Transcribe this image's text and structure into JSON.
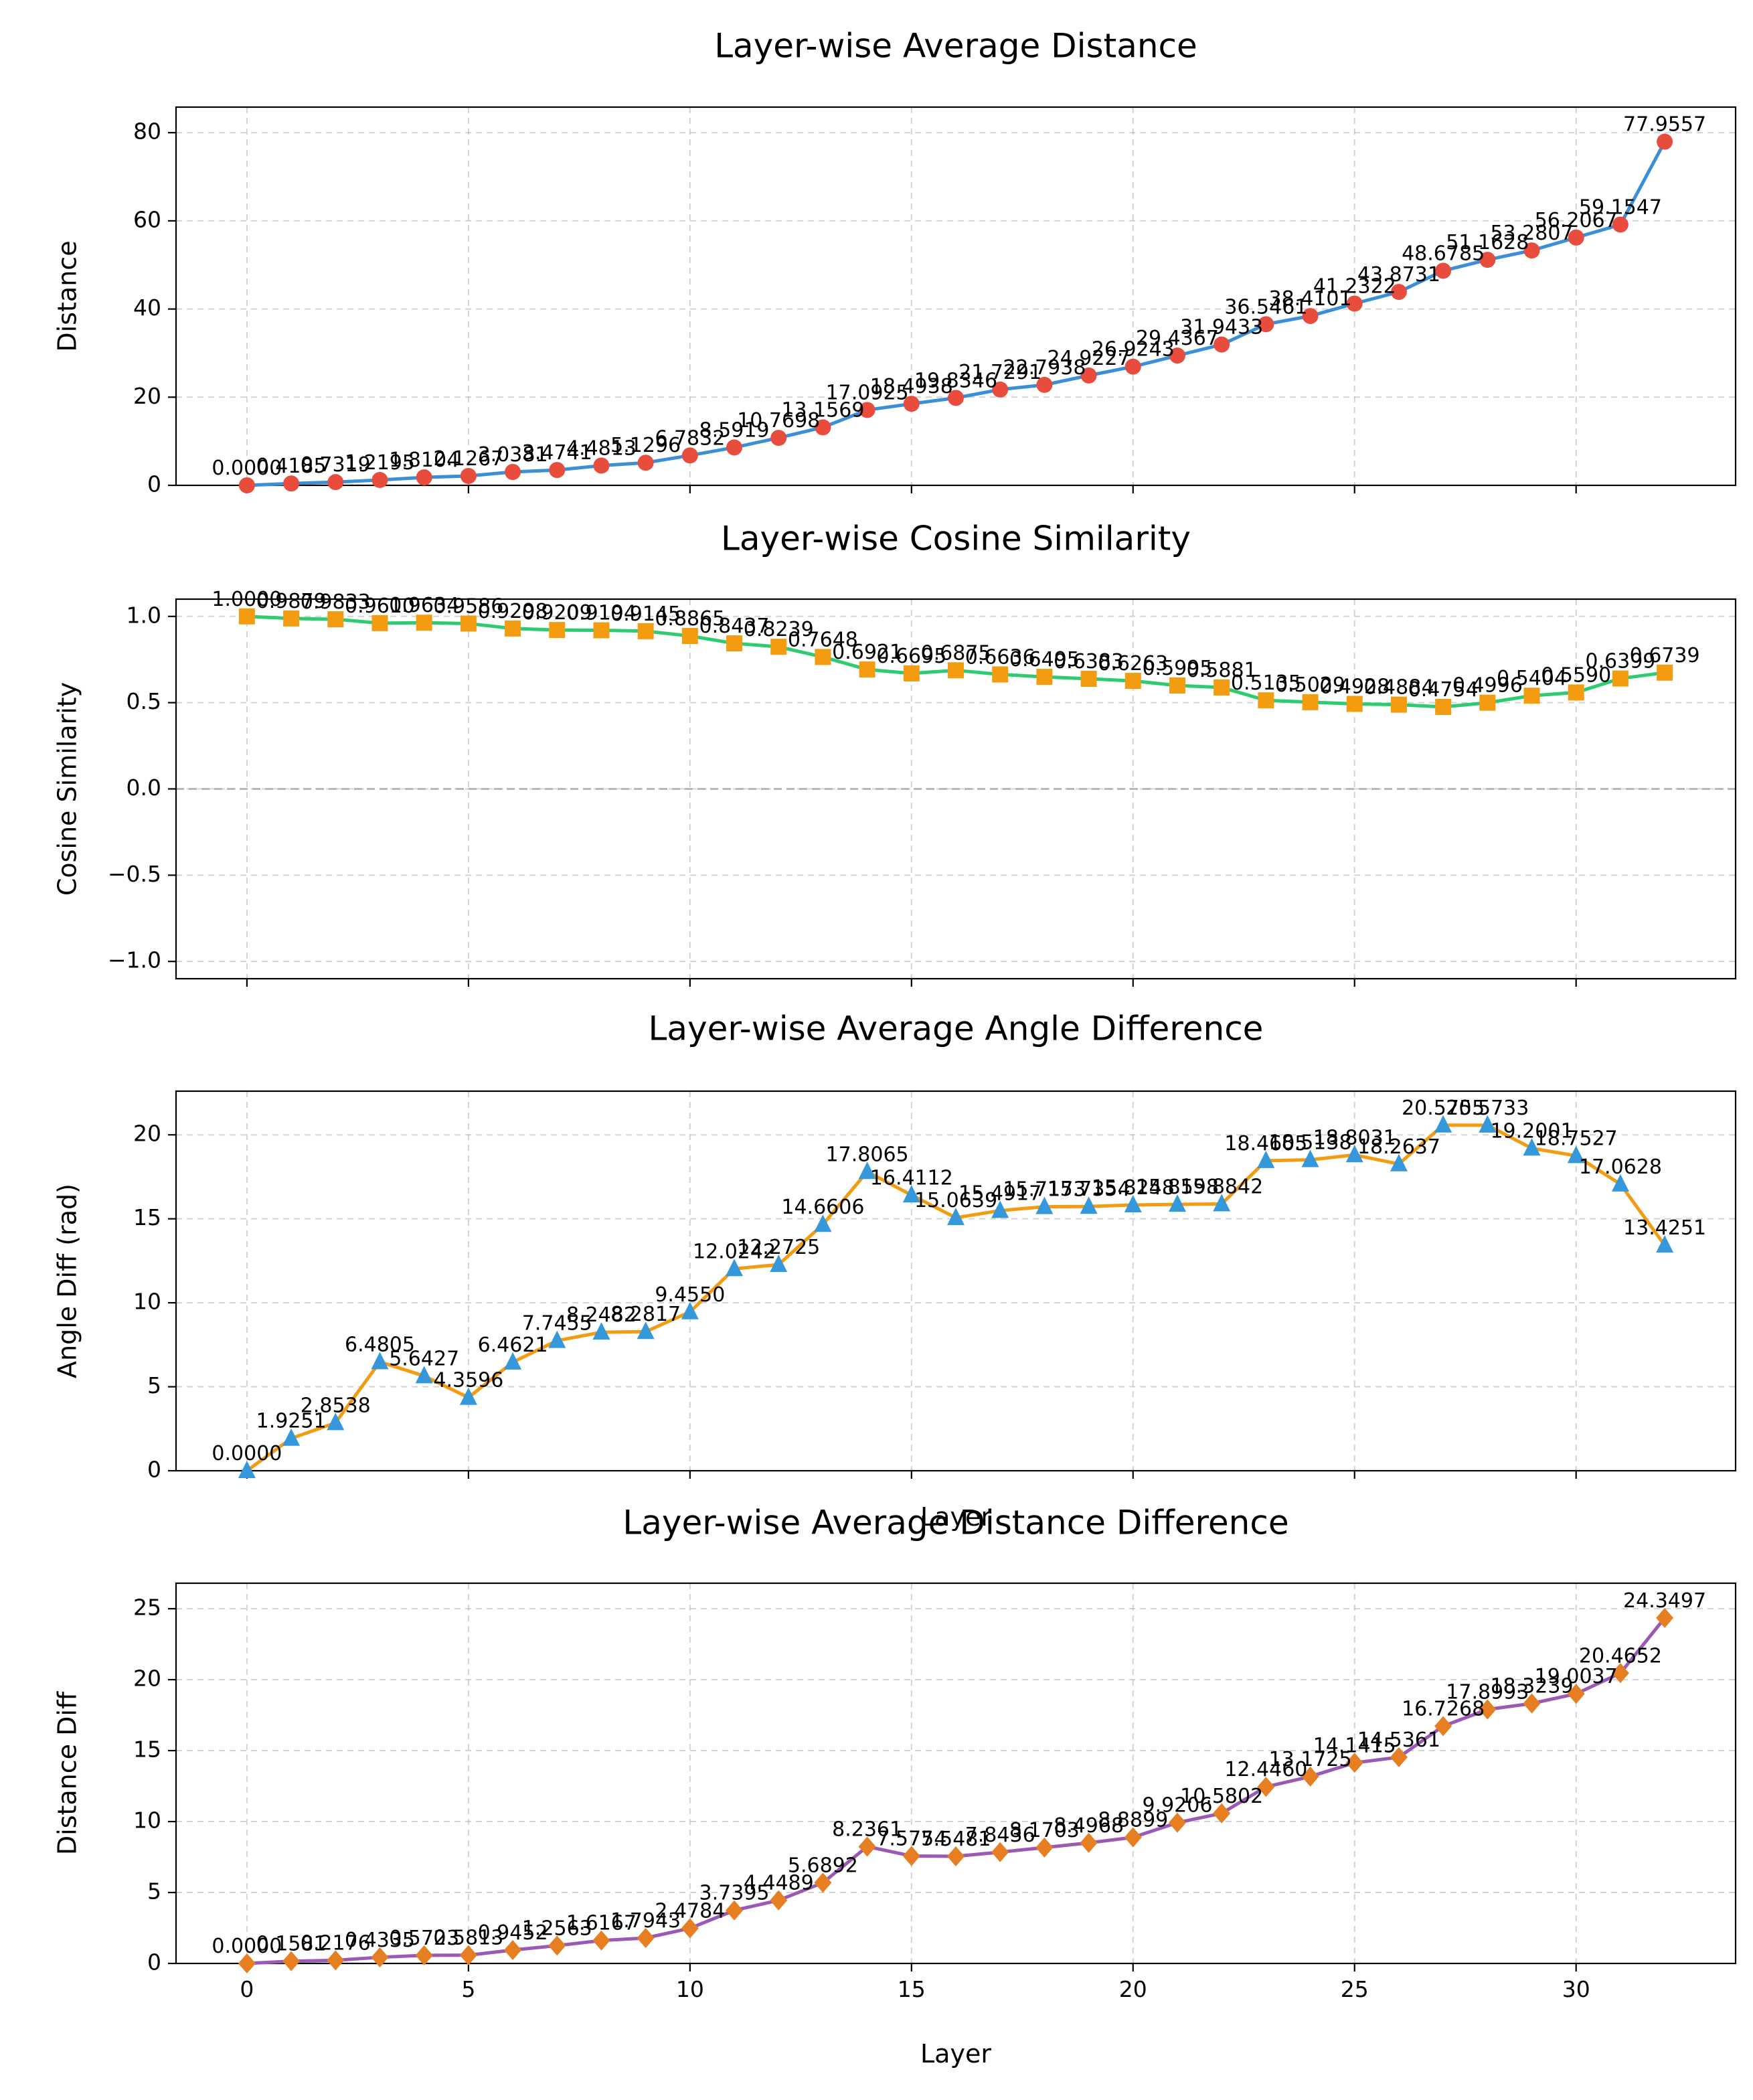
{
  "figure_xlabel": "Layer",
  "chart_data": [
    {
      "type": "line",
      "title": "Layer-wise Average Distance",
      "xlabel": "",
      "ylabel": "Distance",
      "xlim": [
        -1.6,
        33.6
      ],
      "ylim": [
        0,
        85.8
      ],
      "xticks": [
        0,
        5,
        10,
        15,
        20,
        25,
        30
      ],
      "yticks": [
        0,
        20,
        40,
        60,
        80
      ],
      "tick_format": "int",
      "grid": true,
      "line_color": "#3a8fd6",
      "marker": "circle",
      "marker_color": "#e74c3c",
      "series": [
        {
          "x": [
            0,
            1,
            2,
            3,
            4,
            5,
            6,
            7,
            8,
            9,
            10,
            11,
            12,
            13,
            14,
            15,
            16,
            17,
            18,
            19,
            20,
            21,
            22,
            23,
            24,
            25,
            26,
            27,
            28,
            29,
            30,
            31,
            32
          ],
          "values": [
            0.0,
            0.4185,
            0.7319,
            1.2195,
            1.8104,
            2.1267,
            3.0381,
            3.4741,
            4.4813,
            5.1296,
            6.7832,
            8.5919,
            10.7698,
            13.1569,
            17.0925,
            18.4938,
            19.8346,
            21.7291,
            22.7938,
            24.9227,
            26.9243,
            29.4367,
            31.9433,
            36.5461,
            38.4101,
            41.2322,
            43.8731,
            48.6785,
            51.1628,
            53.2807,
            56.2067,
            59.1547,
            77.9557
          ],
          "labels": [
            "0.0000",
            "0.4185",
            "0.7319",
            "1.2195",
            "1.8104",
            "2.1267",
            "3.0381",
            "3.4741",
            "4.4813",
            "5.1296",
            "6.7832",
            "8.5919",
            "10.7698",
            "13.1569",
            "17.0925",
            "18.4938",
            "19.8346",
            "21.7291",
            "22.7938",
            "24.9227",
            "26.9243",
            "29.4367",
            "31.9433",
            "36.5461",
            "38.4101",
            "41.2322",
            "43.8731",
            "48.6785",
            "51.1628",
            "53.2807",
            "56.2067",
            "59.1547",
            "77.9557"
          ]
        }
      ]
    },
    {
      "type": "line",
      "title": "Layer-wise Cosine Similarity",
      "xlabel": "",
      "ylabel": "Cosine Similarity",
      "xlim": [
        -1.6,
        33.6
      ],
      "ylim": [
        -1.1,
        1.1
      ],
      "xticks": [
        0,
        5,
        10,
        15,
        20,
        25,
        30
      ],
      "yticks": [
        -1.0,
        -0.5,
        0.0,
        0.5,
        1.0
      ],
      "tick_format": "1dp",
      "grid": true,
      "zero_line": true,
      "line_color": "#2ecc71",
      "marker": "square",
      "marker_color": "#f39c12",
      "series": [
        {
          "x": [
            0,
            1,
            2,
            3,
            4,
            5,
            6,
            7,
            8,
            9,
            10,
            11,
            12,
            13,
            14,
            15,
            16,
            17,
            18,
            19,
            20,
            21,
            22,
            23,
            24,
            25,
            26,
            27,
            28,
            29,
            30,
            31,
            32
          ],
          "values": [
            1.0,
            0.9879,
            0.9833,
            0.961,
            0.9634,
            0.9586,
            0.9298,
            0.9209,
            0.9194,
            0.9145,
            0.8865,
            0.8437,
            0.8239,
            0.7648,
            0.6921,
            0.6695,
            0.6875,
            0.6636,
            0.6495,
            0.6383,
            0.6263,
            0.5995,
            0.5881,
            0.5135,
            0.5029,
            0.4928,
            0.4884,
            0.4754,
            0.4996,
            0.5404,
            0.559,
            0.6399,
            0.6739
          ],
          "labels": [
            "1.0000",
            "0.9879",
            "0.9833",
            "0.9610",
            "0.9634",
            "0.9586",
            "0.9298",
            "0.9209",
            "0.9194",
            "0.9145",
            "0.8865",
            "0.8437",
            "0.8239",
            "0.7648",
            "0.6921",
            "0.6695",
            "0.6875",
            "0.6636",
            "0.6495",
            "0.6383",
            "0.6263",
            "0.5995",
            "0.5881",
            "0.5135",
            "0.5029",
            "0.4928",
            "0.4884",
            "0.4754",
            "0.4996",
            "0.5404",
            "0.5590",
            "0.6399",
            "0.6739"
          ]
        }
      ]
    },
    {
      "type": "line",
      "title": "Layer-wise Average Angle Difference",
      "xlabel": "Layer",
      "ylabel": "Angle Diff (rad)",
      "xlim": [
        -1.6,
        33.6
      ],
      "ylim": [
        0,
        22.6
      ],
      "xticks": [
        0,
        5,
        10,
        15,
        20,
        25,
        30
      ],
      "yticks": [
        0,
        5,
        10,
        15,
        20
      ],
      "tick_format": "int",
      "grid": true,
      "line_color": "#f39c12",
      "marker": "triangle",
      "marker_color": "#3498db",
      "series": [
        {
          "x": [
            0,
            1,
            2,
            3,
            4,
            5,
            6,
            7,
            8,
            9,
            10,
            11,
            12,
            13,
            14,
            15,
            16,
            17,
            18,
            19,
            20,
            21,
            22,
            23,
            24,
            25,
            26,
            27,
            28,
            29,
            30,
            31,
            32
          ],
          "values": [
            0.0,
            1.9251,
            2.8538,
            6.4805,
            5.6427,
            4.3596,
            6.4621,
            7.7455,
            8.2482,
            8.2817,
            9.455,
            12.0242,
            12.2725,
            14.6606,
            17.8065,
            16.4112,
            15.0639,
            15.4917,
            15.7173,
            15.7354,
            15.8248,
            15.8598,
            15.8842,
            18.4605,
            18.5138,
            18.8031,
            18.2637,
            20.5755,
            20.5733,
            19.2001,
            18.7527,
            17.0628,
            13.4251
          ],
          "labels": [
            "0.0000",
            "1.9251",
            "2.8538",
            "6.4805",
            "5.6427",
            "4.3596",
            "6.4621",
            "7.7455",
            "8.2482",
            "8.2817",
            "9.4550",
            "12.0242",
            "12.2725",
            "14.6606",
            "17.8065",
            "16.4112",
            "15.0639",
            "15.4917",
            "15.7173",
            "15.7354",
            "15.8248",
            "15.8598",
            "15.8842",
            "18.4605",
            "18.5138",
            "18.8031",
            "18.2637",
            "20.5755",
            "20.5733",
            "19.2001",
            "18.7527",
            "17.0628",
            "13.4251"
          ]
        }
      ]
    },
    {
      "type": "line",
      "title": "Layer-wise Average Distance Difference",
      "xlabel": "Layer",
      "ylabel": "Distance Diff",
      "xlim": [
        -1.6,
        33.6
      ],
      "ylim": [
        0,
        26.8
      ],
      "xticks": [
        0,
        5,
        10,
        15,
        20,
        25,
        30
      ],
      "yticks": [
        0,
        5,
        10,
        15,
        20,
        25
      ],
      "tick_format": "int",
      "grid": true,
      "line_color": "#9b59b6",
      "marker": "diamond",
      "marker_color": "#e67e22",
      "series": [
        {
          "x": [
            0,
            1,
            2,
            3,
            4,
            5,
            6,
            7,
            8,
            9,
            10,
            11,
            12,
            13,
            14,
            15,
            16,
            17,
            18,
            19,
            20,
            21,
            22,
            23,
            24,
            25,
            26,
            27,
            28,
            29,
            30,
            31,
            32
          ],
          "values": [
            0.0,
            0.1581,
            0.2176,
            0.4335,
            0.5723,
            0.5813,
            0.9452,
            1.2563,
            1.6167,
            1.7943,
            2.4784,
            3.7395,
            4.4489,
            5.6892,
            8.2361,
            7.5754,
            7.5481,
            7.8436,
            8.1703,
            8.4968,
            8.8899,
            9.9206,
            10.5802,
            12.446,
            13.1725,
            14.1415,
            14.5361,
            16.7268,
            17.8993,
            18.3239,
            19.0037,
            20.4652,
            24.3497
          ],
          "labels": [
            "0.0000",
            "0.1581",
            "0.2176",
            "0.4335",
            "0.5723",
            "0.5813",
            "0.9452",
            "1.2563",
            "1.6167",
            "1.7943",
            "2.4784",
            "3.7395",
            "4.4489",
            "5.6892",
            "8.2361",
            "7.5754",
            "7.5481",
            "7.8436",
            "8.1703",
            "8.4968",
            "8.8899",
            "9.9206",
            "10.5802",
            "12.4460",
            "13.1725",
            "14.1415",
            "14.5361",
            "16.7268",
            "17.8993",
            "18.3239",
            "19.0037",
            "20.4652",
            "24.3497"
          ]
        }
      ]
    }
  ]
}
